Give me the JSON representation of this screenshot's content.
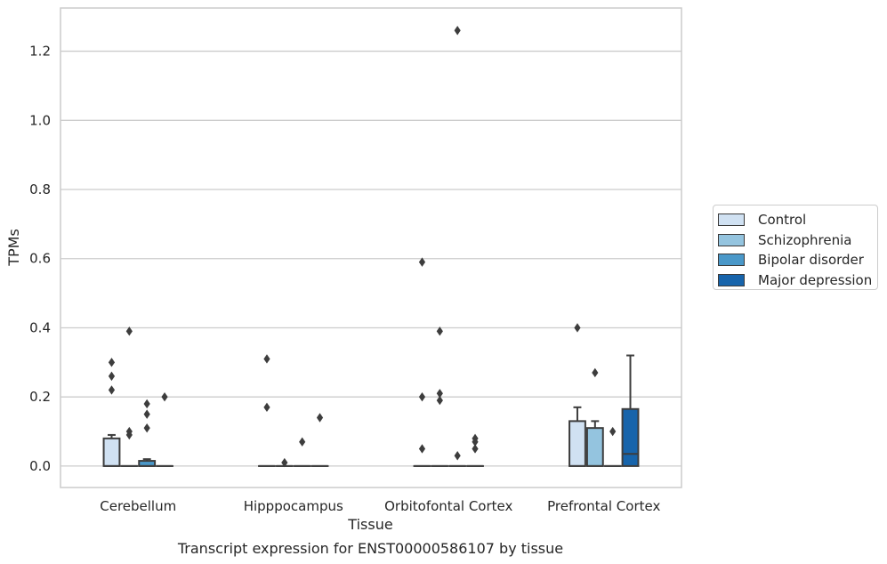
{
  "chart_data": {
    "type": "box",
    "title": "Transcript expression for ENST00000586107 by tissue",
    "xlabel": "Tissue",
    "ylabel": "TPMs",
    "ylim": [
      -0.062,
      1.325
    ],
    "yticks": [
      "0.0",
      "0.2",
      "0.4",
      "0.6",
      "0.8",
      "1.0",
      "1.2"
    ],
    "ytick_values": [
      0.0,
      0.2,
      0.4,
      0.6,
      0.8,
      1.0,
      1.2
    ],
    "grid": true,
    "legend_position": "right",
    "categories": [
      "Cerebellum",
      "Hipppocampus",
      "Orbitofontal Cortex",
      "Prefrontal Cortex"
    ],
    "series": [
      {
        "name": "Control",
        "color": "#d0e1f2",
        "boxes": [
          {
            "q1": 0.0,
            "median": 0.0,
            "q3": 0.08,
            "whisker_low": 0.0,
            "whisker_high": 0.09,
            "outliers": [
              0.3,
              0.26,
              0.22
            ]
          },
          {
            "q1": 0.0,
            "median": 0.0,
            "q3": 0.0,
            "whisker_low": 0.0,
            "whisker_high": 0.0,
            "outliers": [
              0.31,
              0.17
            ]
          },
          {
            "q1": 0.0,
            "median": 0.0,
            "q3": 0.0,
            "whisker_low": 0.0,
            "whisker_high": 0.0,
            "outliers": [
              0.59,
              0.2,
              0.05
            ]
          },
          {
            "q1": 0.0,
            "median": 0.0,
            "q3": 0.13,
            "whisker_low": 0.0,
            "whisker_high": 0.17,
            "outliers": [
              0.4
            ]
          }
        ]
      },
      {
        "name": "Schizophrenia",
        "color": "#94c4df",
        "boxes": [
          {
            "q1": 0.0,
            "median": 0.0,
            "q3": 0.0,
            "whisker_low": 0.0,
            "whisker_high": 0.0,
            "outliers": [
              0.39,
              0.1,
              0.09
            ]
          },
          {
            "q1": 0.0,
            "median": 0.0,
            "q3": 0.0,
            "whisker_low": 0.0,
            "whisker_high": 0.0,
            "outliers": [
              0.01
            ]
          },
          {
            "q1": 0.0,
            "median": 0.0,
            "q3": 0.0,
            "whisker_low": 0.0,
            "whisker_high": 0.0,
            "outliers": [
              0.39,
              0.21,
              0.19
            ]
          },
          {
            "q1": 0.0,
            "median": 0.0,
            "q3": 0.11,
            "whisker_low": 0.0,
            "whisker_high": 0.13,
            "outliers": [
              0.27
            ]
          }
        ]
      },
      {
        "name": "Bipolar disorder",
        "color": "#4a98c9",
        "boxes": [
          {
            "q1": 0.0,
            "median": 0.0,
            "q3": 0.015,
            "whisker_low": 0.0,
            "whisker_high": 0.02,
            "outliers": [
              0.18,
              0.15,
              0.11
            ]
          },
          {
            "q1": 0.0,
            "median": 0.0,
            "q3": 0.0,
            "whisker_low": 0.0,
            "whisker_high": 0.0,
            "outliers": [
              0.07
            ]
          },
          {
            "q1": 0.0,
            "median": 0.0,
            "q3": 0.0,
            "whisker_low": 0.0,
            "whisker_high": 0.0,
            "outliers": [
              1.26,
              0.03
            ]
          },
          {
            "q1": 0.0,
            "median": 0.0,
            "q3": 0.0,
            "whisker_low": 0.0,
            "whisker_high": 0.0,
            "outliers": [
              0.1
            ]
          }
        ]
      },
      {
        "name": "Major depression",
        "color": "#1764ab",
        "boxes": [
          {
            "q1": 0.0,
            "median": 0.0,
            "q3": 0.0,
            "whisker_low": 0.0,
            "whisker_high": 0.0,
            "outliers": [
              0.2
            ]
          },
          {
            "q1": 0.0,
            "median": 0.0,
            "q3": 0.0,
            "whisker_low": 0.0,
            "whisker_high": 0.0,
            "outliers": [
              0.14
            ]
          },
          {
            "q1": 0.0,
            "median": 0.0,
            "q3": 0.0,
            "whisker_low": 0.0,
            "whisker_high": 0.0,
            "outliers": [
              0.08,
              0.07,
              0.05
            ]
          },
          {
            "q1": 0.0,
            "median": 0.035,
            "q3": 0.165,
            "whisker_low": 0.0,
            "whisker_high": 0.32,
            "outliers": []
          }
        ]
      }
    ]
  }
}
